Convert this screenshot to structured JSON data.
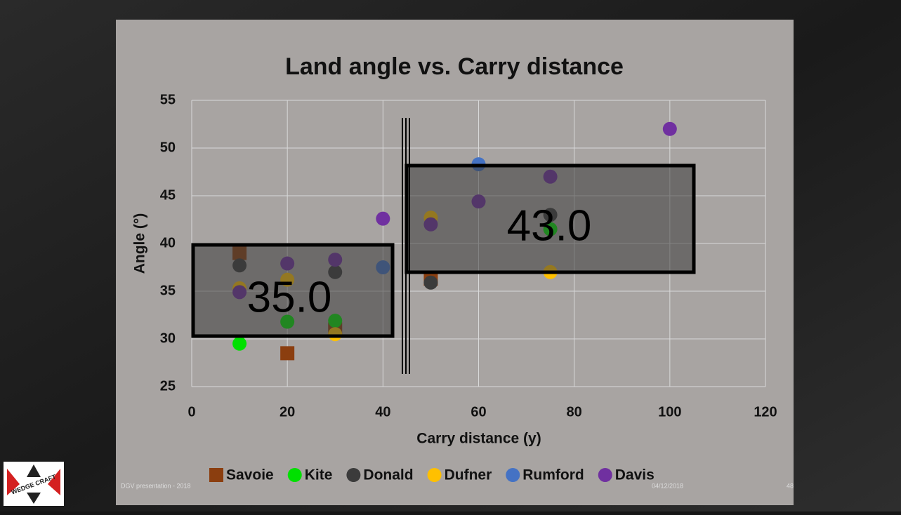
{
  "chart_data": {
    "type": "scatter",
    "title": "Land angle vs. Carry distance",
    "xlabel": "Carry distance (y)",
    "ylabel": "Angle (°)",
    "xlim": [
      0,
      120
    ],
    "xticks": [
      0,
      20,
      40,
      60,
      80,
      100,
      120
    ],
    "ylim": [
      25,
      55
    ],
    "yticks": [
      25,
      30,
      35,
      40,
      45,
      50,
      55
    ],
    "grid": true,
    "legend": "bottom",
    "series": [
      {
        "name": "Savoie",
        "color": "#8b3e0f",
        "marker": "square",
        "x": [
          10,
          20,
          30,
          50
        ],
        "values": [
          39,
          28.5,
          31,
          36.3
        ]
      },
      {
        "name": "Kite",
        "color": "#00e000",
        "marker": "circle",
        "x": [
          10,
          20,
          30,
          75
        ],
        "values": [
          29.5,
          31.8,
          31.9,
          41.5
        ]
      },
      {
        "name": "Donald",
        "color": "#3b3b3b",
        "marker": "circle",
        "x": [
          10,
          30,
          50,
          75
        ],
        "values": [
          37.7,
          37,
          35.9,
          43
        ]
      },
      {
        "name": "Dufner",
        "color": "#ffc000",
        "marker": "circle",
        "x": [
          10,
          20,
          30,
          50,
          75
        ],
        "values": [
          35.3,
          36.2,
          30.5,
          42.7,
          37
        ]
      },
      {
        "name": "Rumford",
        "color": "#4472c4",
        "marker": "circle",
        "x": [
          40,
          60
        ],
        "values": [
          37.5,
          48.3
        ]
      },
      {
        "name": "Davis",
        "color": "#7030a0",
        "marker": "circle",
        "x": [
          10,
          20,
          30,
          40,
          50,
          60,
          75,
          100
        ],
        "values": [
          34.9,
          37.9,
          38.3,
          42.6,
          42,
          44.4,
          47,
          52
        ]
      }
    ],
    "annotations": [
      "35.0",
      "43.0"
    ]
  },
  "footer": {
    "left": "DGV presentation - 2018",
    "date": "04/12/2018",
    "page": "48"
  },
  "logo": "WEDGE CRAFT"
}
